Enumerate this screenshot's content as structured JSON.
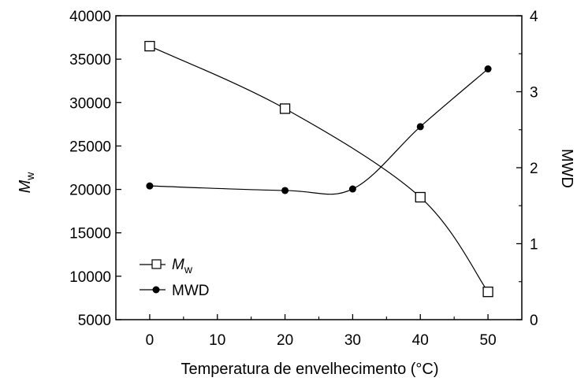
{
  "chart_data": {
    "type": "scatter",
    "xlabel": "Temperatura de envelhecimento (°C)",
    "xlim": [
      -5,
      55
    ],
    "x_ticks": [
      0,
      10,
      20,
      30,
      40,
      50
    ],
    "ylabel_left": {
      "main": "M",
      "sub": "w"
    },
    "ylim_left": [
      5000,
      40000
    ],
    "y_ticks_left": [
      5000,
      10000,
      15000,
      20000,
      25000,
      30000,
      35000,
      40000
    ],
    "ylabel_right": "MWD",
    "ylim_right": [
      0,
      4
    ],
    "y_ticks_right": [
      0,
      1,
      2,
      3,
      4
    ],
    "grid": false,
    "legend_position": "bottom-left",
    "series": [
      {
        "name": "Mw",
        "legend_main": "M",
        "legend_sub": "w",
        "axis": "left",
        "marker": "open-square",
        "x": [
          0,
          20,
          40,
          50
        ],
        "y": [
          36500,
          29300,
          19100,
          8200
        ]
      },
      {
        "name": "MWD",
        "axis": "right",
        "marker": "filled-circle",
        "x": [
          0,
          20,
          30,
          40,
          50
        ],
        "y": [
          1.76,
          1.7,
          1.72,
          2.54,
          3.3
        ]
      }
    ]
  }
}
